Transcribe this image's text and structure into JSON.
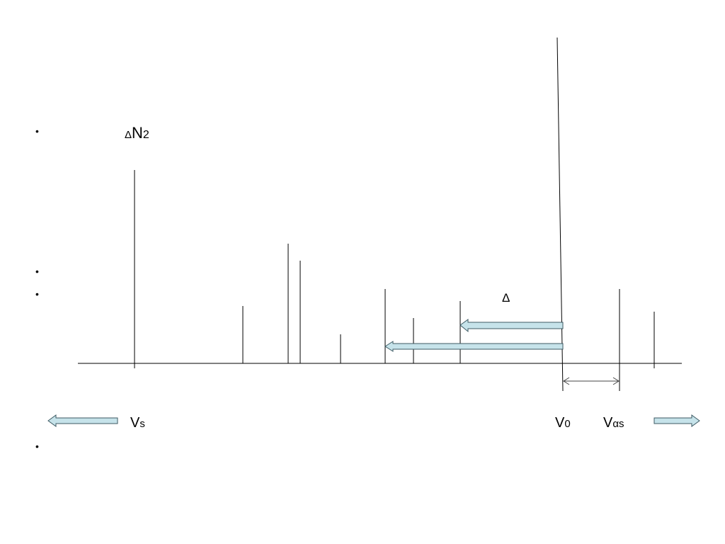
{
  "labels": {
    "delta_n2": {
      "prefix": "Δ",
      "main": "N",
      "sub": "2"
    },
    "delta": "Δ",
    "v_s": {
      "main": "V",
      "sub": "s"
    },
    "v_0": {
      "main": "V",
      "sub": "0"
    },
    "v_as": {
      "main": "V",
      "sub": "αs"
    }
  },
  "bullet_char": "•",
  "colors": {
    "line": "#000000",
    "arrow_fill": "#c6e3ea",
    "arrow_stroke": "#3d5a63",
    "dim_line": "#444444"
  }
}
